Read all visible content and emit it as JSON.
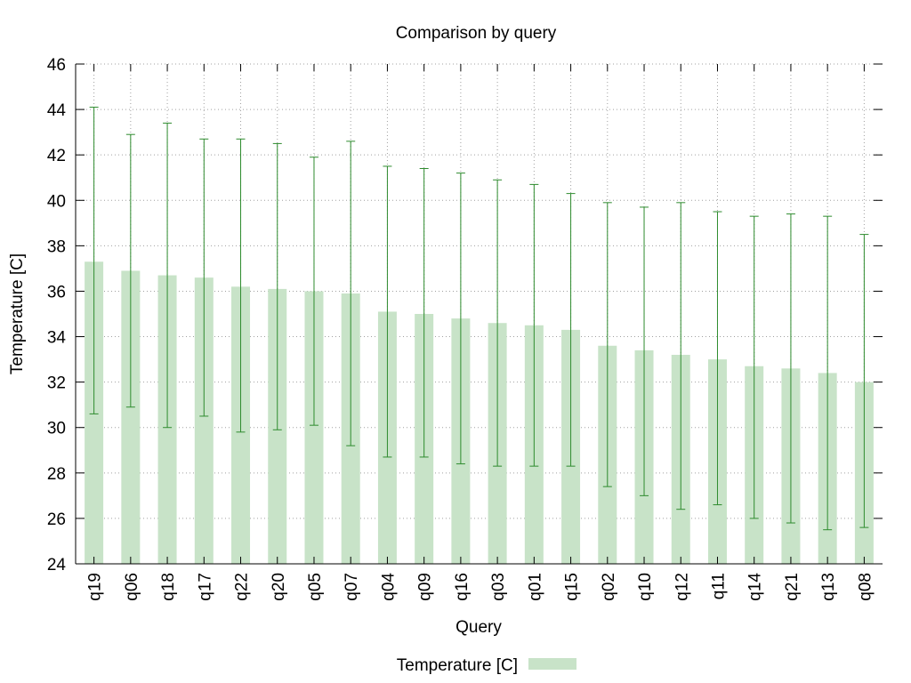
{
  "chart_data": {
    "type": "bar",
    "title": "Comparison by query",
    "xlabel": "Query",
    "ylabel": "Temperature [C]",
    "ylim": [
      24,
      46
    ],
    "yticks": [
      24,
      26,
      28,
      30,
      32,
      34,
      36,
      38,
      40,
      42,
      44,
      46
    ],
    "grid": true,
    "legend_position": "bottom-center",
    "categories": [
      "q19",
      "q06",
      "q18",
      "q17",
      "q22",
      "q20",
      "q05",
      "q07",
      "q04",
      "q09",
      "q16",
      "q03",
      "q01",
      "q15",
      "q02",
      "q10",
      "q12",
      "q11",
      "q14",
      "q21",
      "q13",
      "q08"
    ],
    "series": [
      {
        "name": "Temperature [C]",
        "color": "#c8e3c8",
        "error_color": "#2e8b2e",
        "values": [
          37.3,
          36.9,
          36.7,
          36.6,
          36.2,
          36.1,
          36.0,
          35.9,
          35.1,
          35.0,
          34.8,
          34.6,
          34.5,
          34.3,
          33.6,
          33.4,
          33.2,
          33.0,
          32.7,
          32.6,
          32.4,
          32.0
        ],
        "error_low": [
          30.6,
          30.9,
          30.0,
          30.5,
          29.8,
          29.9,
          30.1,
          29.2,
          28.7,
          28.7,
          28.4,
          28.3,
          28.3,
          28.3,
          27.4,
          27.0,
          26.4,
          26.6,
          26.0,
          25.8,
          25.5,
          25.6
        ],
        "error_high": [
          44.1,
          42.9,
          43.4,
          42.7,
          42.7,
          42.5,
          41.9,
          42.6,
          41.5,
          41.4,
          41.2,
          40.9,
          40.7,
          40.3,
          39.9,
          39.7,
          39.9,
          39.5,
          39.3,
          39.4,
          39.3,
          38.5
        ]
      }
    ]
  }
}
